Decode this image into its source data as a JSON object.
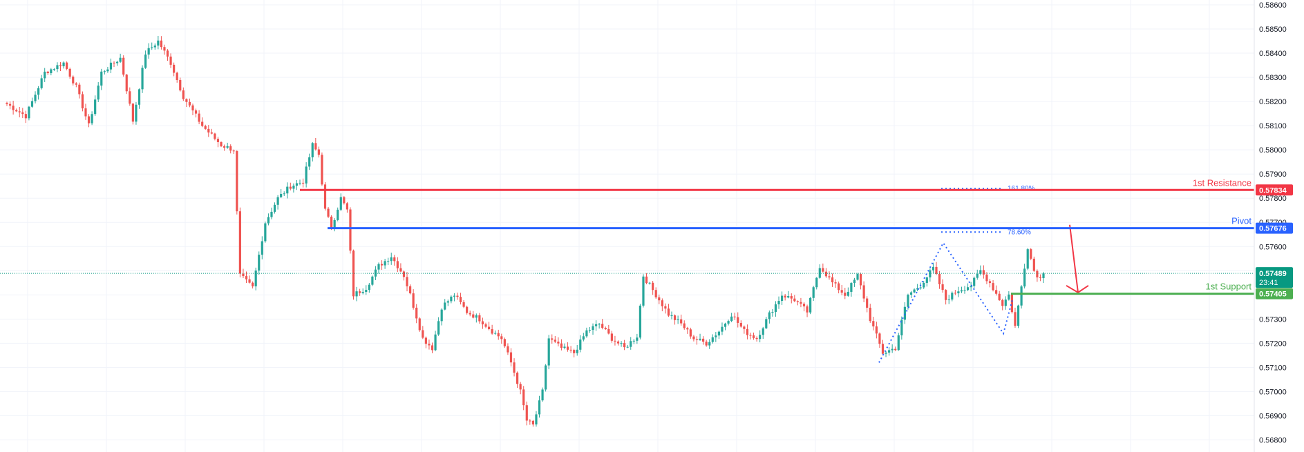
{
  "colors": {
    "up": "#26a69a",
    "down": "#ef5350",
    "resistance": "#f23645",
    "pivot": "#2962ff",
    "support": "#4caf50",
    "last_price": "#089981",
    "grid": "#f0f3fa",
    "axis_text": "#131722"
  },
  "chart_data": {
    "type": "candlestick",
    "ylim": [
      0.5675,
      0.5862
    ],
    "y_ticks": [
      "0.56800",
      "0.56900",
      "0.57000",
      "0.57100",
      "0.57200",
      "0.57300",
      "0.57400",
      "0.57500",
      "0.57600",
      "0.57700",
      "0.57800",
      "0.57900",
      "0.58000",
      "0.58100",
      "0.58200",
      "0.58300",
      "0.58400",
      "0.58500",
      "0.58600"
    ],
    "levels": [
      {
        "name": "1st Resistance",
        "value": 0.57834,
        "tag": "0.57834",
        "color": "#f23645"
      },
      {
        "name": "Pivot",
        "value": 0.57676,
        "tag": "0.57676",
        "color": "#2962ff"
      },
      {
        "name": "1st Support",
        "value": 0.57405,
        "tag": "0.57405",
        "color": "#4caf50"
      }
    ],
    "fib_labels": [
      {
        "label": "161.80%",
        "value": 0.5784
      },
      {
        "label": "78.60%",
        "value": 0.5766
      }
    ],
    "last_price": {
      "value": 0.57489,
      "tag": "0.57489",
      "countdown": "23:41"
    },
    "anchors": [
      [
        0,
        0.5819
      ],
      [
        6,
        0.5814
      ],
      [
        12,
        0.5832
      ],
      [
        18,
        0.5836
      ],
      [
        22,
        0.5826
      ],
      [
        26,
        0.581
      ],
      [
        30,
        0.5832
      ],
      [
        36,
        0.5838
      ],
      [
        40,
        0.5812
      ],
      [
        44,
        0.584
      ],
      [
        48,
        0.5845
      ],
      [
        52,
        0.5836
      ],
      [
        56,
        0.5822
      ],
      [
        62,
        0.581
      ],
      [
        68,
        0.5802
      ],
      [
        72,
        0.58
      ],
      [
        74,
        0.5748
      ],
      [
        78,
        0.5743
      ],
      [
        82,
        0.577
      ],
      [
        86,
        0.578
      ],
      [
        90,
        0.5785
      ],
      [
        94,
        0.5787
      ],
      [
        97,
        0.5802
      ],
      [
        99,
        0.5798
      ],
      [
        101,
        0.5775
      ],
      [
        103,
        0.5768
      ],
      [
        106,
        0.578
      ],
      [
        108,
        0.5775
      ],
      [
        110,
        0.574
      ],
      [
        114,
        0.5743
      ],
      [
        118,
        0.5752
      ],
      [
        122,
        0.5756
      ],
      [
        126,
        0.5748
      ],
      [
        128,
        0.574
      ],
      [
        132,
        0.5722
      ],
      [
        135,
        0.5718
      ],
      [
        138,
        0.5735
      ],
      [
        142,
        0.574
      ],
      [
        146,
        0.5733
      ],
      [
        150,
        0.573
      ],
      [
        154,
        0.5725
      ],
      [
        157,
        0.5722
      ],
      [
        160,
        0.5712
      ],
      [
        163,
        0.57
      ],
      [
        165,
        0.5688
      ],
      [
        167,
        0.5686
      ],
      [
        170,
        0.57
      ],
      [
        172,
        0.5722
      ],
      [
        176,
        0.5718
      ],
      [
        180,
        0.5716
      ],
      [
        184,
        0.5725
      ],
      [
        188,
        0.5728
      ],
      [
        192,
        0.5722
      ],
      [
        196,
        0.5718
      ],
      [
        200,
        0.5723
      ],
      [
        202,
        0.5748
      ],
      [
        206,
        0.574
      ],
      [
        210,
        0.5732
      ],
      [
        214,
        0.5728
      ],
      [
        218,
        0.5722
      ],
      [
        222,
        0.572
      ],
      [
        226,
        0.5725
      ],
      [
        230,
        0.5732
      ],
      [
        234,
        0.5725
      ],
      [
        238,
        0.5722
      ],
      [
        242,
        0.5732
      ],
      [
        246,
        0.574
      ],
      [
        250,
        0.5738
      ],
      [
        254,
        0.5733
      ],
      [
        258,
        0.5752
      ],
      [
        262,
        0.5745
      ],
      [
        266,
        0.574
      ],
      [
        270,
        0.5748
      ],
      [
        274,
        0.573
      ],
      [
        278,
        0.5716
      ],
      [
        282,
        0.5718
      ],
      [
        286,
        0.574
      ],
      [
        290,
        0.5744
      ],
      [
        294,
        0.5751
      ],
      [
        298,
        0.5738
      ],
      [
        302,
        0.5742
      ],
      [
        306,
        0.5744
      ],
      [
        309,
        0.575
      ],
      [
        312,
        0.5745
      ],
      [
        316,
        0.5736
      ],
      [
        318,
        0.574
      ],
      [
        320,
        0.5727
      ],
      [
        324,
        0.576
      ],
      [
        326,
        0.575
      ],
      [
        329,
        0.5745
      ]
    ]
  },
  "labels": {
    "resistance": "1st Resistance",
    "pivot": "Pivot",
    "support": "1st Support"
  }
}
